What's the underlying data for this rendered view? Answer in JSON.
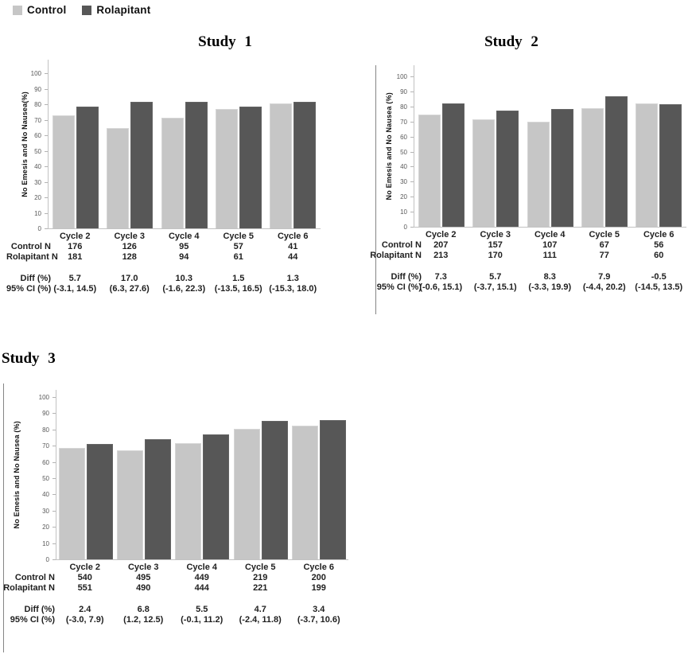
{
  "legend": {
    "items": [
      {
        "label": "Control",
        "color": "#c6c6c6"
      },
      {
        "label": "Rolapitant",
        "color": "#575757"
      }
    ]
  },
  "axis": {
    "min": 0,
    "max": 100,
    "step": 10
  },
  "table_row_labels": {
    "control_n": "Control N",
    "rolapitant_n": "Rolapitant N",
    "diff": "Diff (%)",
    "ci": "95% CI (%)"
  },
  "chart_data": [
    {
      "type": "bar",
      "title": "Study 1",
      "ylabel": "No Emesis and No Nausea(%)",
      "ylim": [
        0,
        100
      ],
      "grid": false,
      "categories": [
        "Cycle 2",
        "Cycle 3",
        "Cycle 4",
        "Cycle 5",
        "Cycle 6"
      ],
      "series": [
        {
          "name": "Control",
          "values": [
            73.0,
            64.6,
            71.4,
            77.0,
            80.3
          ]
        },
        {
          "name": "Rolapitant",
          "values": [
            78.7,
            81.6,
            81.7,
            78.5,
            81.6
          ]
        }
      ],
      "table": {
        "control_n": [
          "176",
          "126",
          "95",
          "57",
          "41"
        ],
        "rolapitant_n": [
          "181",
          "128",
          "94",
          "61",
          "44"
        ],
        "diff": [
          "5.7",
          "17.0",
          "10.3",
          "1.5",
          "1.3"
        ],
        "ci": [
          "(-3.1, 14.5)",
          "(6.3, 27.6)",
          "(-1.6, 22.3)",
          "(-13.5, 16.5)",
          "(-15.3, 18.0)"
        ]
      }
    },
    {
      "type": "bar",
      "title": "Study 2",
      "ylabel": "No Emesis and No Nausea (%)",
      "ylim": [
        0,
        100
      ],
      "grid": false,
      "categories": [
        "Cycle 2",
        "Cycle 3",
        "Cycle 4",
        "Cycle 5",
        "Cycle 6"
      ],
      "series": [
        {
          "name": "Control",
          "values": [
            74.5,
            71.7,
            69.9,
            78.7,
            82.0
          ]
        },
        {
          "name": "Rolapitant",
          "values": [
            81.8,
            77.4,
            78.2,
            86.6,
            81.5
          ]
        }
      ],
      "table": {
        "control_n": [
          "207",
          "157",
          "107",
          "67",
          "56"
        ],
        "rolapitant_n": [
          "213",
          "170",
          "111",
          "77",
          "60"
        ],
        "diff": [
          "7.3",
          "5.7",
          "8.3",
          "7.9",
          "-0.5"
        ],
        "ci": [
          "(-0.6, 15.1)",
          "(-3.7, 15.1)",
          "(-3.3, 19.9)",
          "(-4.4, 20.2)",
          "(-14.5, 13.5)"
        ]
      }
    },
    {
      "type": "bar",
      "title": "Study 3",
      "ylabel": "No Emesis and No Nausea (%)",
      "ylim": [
        0,
        100
      ],
      "grid": false,
      "categories": [
        "Cycle 2",
        "Cycle 3",
        "Cycle 4",
        "Cycle 5",
        "Cycle 6"
      ],
      "series": [
        {
          "name": "Control",
          "values": [
            68.8,
            67.3,
            71.7,
            80.6,
            82.4
          ]
        },
        {
          "name": "Rolapitant",
          "values": [
            71.2,
            74.1,
            77.2,
            85.3,
            85.8
          ]
        }
      ],
      "table": {
        "control_n": [
          "540",
          "495",
          "449",
          "219",
          "200"
        ],
        "rolapitant_n": [
          "551",
          "490",
          "444",
          "221",
          "199"
        ],
        "diff": [
          "2.4",
          "6.8",
          "5.5",
          "4.7",
          "3.4"
        ],
        "ci": [
          "(-3.0, 7.9)",
          "(1.2, 12.5)",
          "(-0.1, 11.2)",
          "(-2.4, 11.8)",
          "(-3.7, 10.6)"
        ]
      }
    }
  ]
}
